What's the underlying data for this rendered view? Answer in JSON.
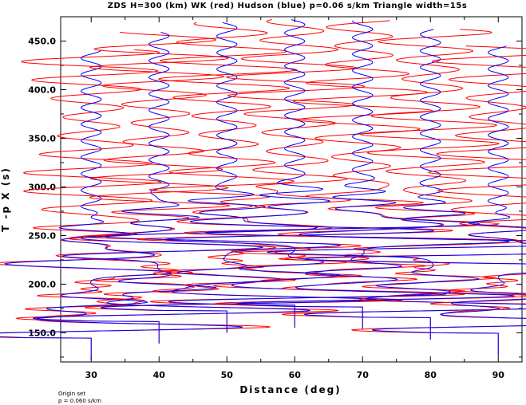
{
  "chart_data": {
    "type": "line",
    "title": "ZDS H=300 (km) WK (red) Hudson (blue) p=0.06 s/km Triangle width=15s",
    "xlabel": "Distance (deg)",
    "ylabel": "T -p X (s)",
    "xlim": [
      25.5,
      93.5
    ],
    "ylim": [
      120,
      475
    ],
    "x_ticks": [
      30,
      40,
      50,
      60,
      70,
      80,
      90
    ],
    "x_tick_labels": [
      "30",
      "40",
      "50",
      "60",
      "70",
      "80",
      "90"
    ],
    "y_ticks": [
      150,
      200,
      250,
      300,
      350,
      400,
      450
    ],
    "y_tick_labels": [
      "150.0",
      "200.0",
      "250.0",
      "300.0",
      "350.0",
      "400.0",
      "450.0"
    ],
    "grid": false,
    "series": [
      {
        "name": "WK",
        "color": "#ff0000"
      },
      {
        "name": "Hudson",
        "color": "#0000ff"
      }
    ],
    "traces": [
      {
        "distance": 30,
        "t_start": 122,
        "t_end": 441,
        "onset": 148
      },
      {
        "distance": 40,
        "t_start": 139,
        "t_end": 459,
        "onset": 165
      },
      {
        "distance": 50,
        "t_start": 150,
        "t_end": 469,
        "onset": 176
      },
      {
        "distance": 60,
        "t_start": 155,
        "t_end": 472,
        "onset": 182
      },
      {
        "distance": 70,
        "t_start": 154,
        "t_end": 471,
        "onset": 180
      },
      {
        "distance": 80,
        "t_start": 143,
        "t_end": 462,
        "onset": 169
      },
      {
        "distance": 90,
        "t_start": 126,
        "t_end": 445,
        "onset": 153
      }
    ]
  },
  "footer": {
    "line1": "Origin set",
    "line2": "p = 0.060 s/km"
  }
}
